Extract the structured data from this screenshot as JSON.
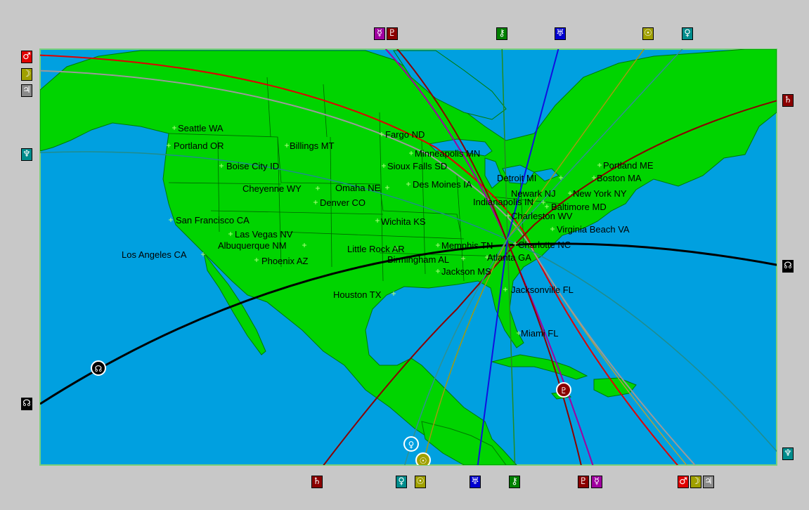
{
  "planet_colors": {
    "mercury": "#a000a0",
    "pluto": "#8b0000",
    "chiron": "#008000",
    "uranus": "#0000d0",
    "sun": "#a0a000",
    "venus": "#008c8c",
    "mars": "#e00000",
    "moon": "#a0a000",
    "jupiter": "#8a8a8a",
    "saturn": "#8b0000",
    "neptune": "#008c8c",
    "node": "#000000"
  },
  "planet_glyphs": {
    "mercury": "☿",
    "pluto": "♇",
    "chiron": "⚷",
    "uranus": "♅",
    "sun": "☉",
    "venus": "♀",
    "mars": "♂",
    "moon": "☽",
    "jupiter": "♃",
    "saturn": "♄",
    "neptune": "♆",
    "node": "☊"
  },
  "cities": [
    {
      "name": "Seattle WA"
    },
    {
      "name": "Portland OR"
    },
    {
      "name": "Billings MT"
    },
    {
      "name": "Boise City ID"
    },
    {
      "name": "Fargo ND"
    },
    {
      "name": "Minneapolis MN"
    },
    {
      "name": "Sioux Falls SD"
    },
    {
      "name": "Cheyenne WY"
    },
    {
      "name": "Omaha NE"
    },
    {
      "name": "Des Moines IA"
    },
    {
      "name": "Detroit MI"
    },
    {
      "name": "Portland ME"
    },
    {
      "name": "Boston MA"
    },
    {
      "name": "Denver CO"
    },
    {
      "name": "Newark NJ"
    },
    {
      "name": "New York NY"
    },
    {
      "name": "Indianapolis IN"
    },
    {
      "name": "Baltimore MD"
    },
    {
      "name": "Charleston WV"
    },
    {
      "name": "San Francisco CA"
    },
    {
      "name": "Wichita KS"
    },
    {
      "name": "Virginia Beach VA"
    },
    {
      "name": "Las Vegas NV"
    },
    {
      "name": "Albuquerque NM"
    },
    {
      "name": "Little Rock AR"
    },
    {
      "name": "Memphis TN"
    },
    {
      "name": "Charlotte NC"
    },
    {
      "name": "Los Angeles CA"
    },
    {
      "name": "Phoenix AZ"
    },
    {
      "name": "Birmingham AL"
    },
    {
      "name": "Atlanta GA"
    },
    {
      "name": "Jackson MS"
    },
    {
      "name": "Houston TX"
    },
    {
      "name": "Jacksonville FL"
    },
    {
      "name": "Miami FL"
    }
  ]
}
